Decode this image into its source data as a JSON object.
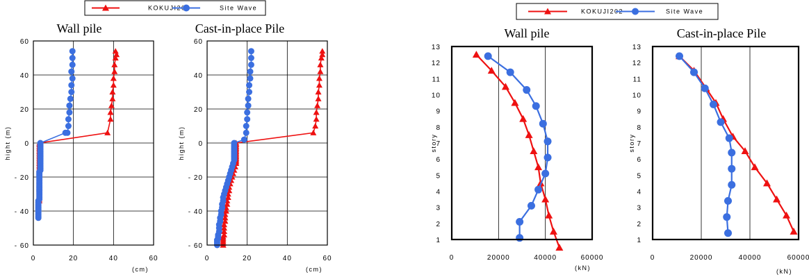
{
  "colors": {
    "red": "#ee1111",
    "blue": "#3b6fe0"
  },
  "legends": [
    {
      "items": [
        {
          "label": "KOKUJI202",
          "color": "#ee1111",
          "marker": "triangle"
        },
        {
          "label": "Site Wave",
          "color": "#3b6fe0",
          "marker": "circle"
        }
      ]
    },
    {
      "items": [
        {
          "label": "KOKUJI202",
          "color": "#ee1111",
          "marker": "triangle"
        },
        {
          "label": "Site Wave",
          "color": "#3b6fe0",
          "marker": "circle"
        }
      ]
    }
  ],
  "chart_data": [
    {
      "type": "line",
      "title": "Wall pile",
      "ylabel": "hight (m)",
      "xunit": "(cm)",
      "xlim": [
        0,
        60
      ],
      "ylim": [
        -60,
        60
      ],
      "xticks": [
        0,
        20,
        40,
        60
      ],
      "yticks": [
        60,
        40,
        20,
        0,
        -20,
        -40,
        -60
      ],
      "grid": true,
      "series": [
        {
          "name": "KOKUJI202",
          "color": "#ee1111",
          "marker": "triangle",
          "x": [
            41,
            41.5,
            41,
            40.5,
            40.5,
            40,
            40,
            39.5,
            39.5,
            39,
            38.5,
            38.5,
            37,
            3,
            3,
            3,
            3,
            3,
            3,
            3,
            3,
            3,
            3,
            3,
            3,
            3,
            3,
            3,
            3,
            3,
            3,
            3,
            3,
            3,
            3,
            3,
            3,
            3,
            3,
            3,
            3,
            3,
            3,
            3,
            3,
            3,
            3,
            3
          ],
          "y": [
            54,
            52,
            50,
            46,
            42,
            38,
            34,
            30,
            26,
            22,
            18,
            14,
            6,
            0,
            -1,
            -2,
            -3,
            -4,
            -5,
            -6,
            -7,
            -8,
            -9,
            -10,
            -11,
            -12,
            -13,
            -14,
            -15,
            -16,
            -17,
            -18,
            -19,
            -20,
            -21,
            -22,
            -23,
            -24,
            -25,
            -26,
            -27,
            -28,
            -29,
            -30,
            -31,
            -32,
            -33,
            -34
          ]
        },
        {
          "name": "Site Wave",
          "color": "#3b6fe0",
          "marker": "circle",
          "x": [
            19.5,
            19.5,
            19.5,
            19,
            19.5,
            19,
            19,
            18.5,
            18,
            18,
            17.5,
            17.5,
            17,
            16,
            3.5,
            3.5,
            3.5,
            3.5,
            3.5,
            3.5,
            3.5,
            3.5,
            3.5,
            3.5,
            3.5,
            3.5,
            3.5,
            3.5,
            3.5,
            3.5,
            3.5,
            3,
            3,
            3,
            3,
            3,
            3,
            3,
            3,
            3,
            3,
            3,
            3,
            3,
            3,
            3,
            3,
            3,
            2.5,
            2.5,
            2.5,
            2.5,
            2.5,
            2.5,
            2.5,
            2.5,
            2.5,
            2.5,
            2.5
          ],
          "y": [
            54,
            50,
            46,
            42,
            38,
            34,
            30,
            26,
            22,
            18,
            14,
            10,
            6,
            6,
            0,
            -1,
            -2,
            -3,
            -4,
            -5,
            -6,
            -7,
            -8,
            -9,
            -10,
            -11,
            -12,
            -13,
            -14,
            -15,
            -16,
            -17,
            -18,
            -19,
            -20,
            -21,
            -22,
            -23,
            -24,
            -25,
            -26,
            -27,
            -28,
            -29,
            -30,
            -31,
            -32,
            -33,
            -34,
            -35,
            -36,
            -37,
            -38,
            -39,
            -40,
            -41,
            -42,
            -43,
            -44
          ]
        }
      ]
    },
    {
      "type": "line",
      "title": "Cast-in-place Pile",
      "ylabel": "hight (m)",
      "xunit": "(cm)",
      "xlim": [
        0,
        60
      ],
      "ylim": [
        -60,
        60
      ],
      "xticks": [
        0,
        20,
        40,
        60
      ],
      "yticks": [
        60,
        40,
        20,
        0,
        -20,
        -40,
        -60
      ],
      "grid": true,
      "series": [
        {
          "name": "KOKUJI202",
          "color": "#ee1111",
          "marker": "triangle",
          "x": [
            57.5,
            57.5,
            57,
            56.5,
            56.5,
            56,
            56,
            55.5,
            55.5,
            55,
            54.5,
            54.5,
            54,
            53,
            14.5,
            14.5,
            14.5,
            14.5,
            14.5,
            14.5,
            14.5,
            14.5,
            14.5,
            14.5,
            14.5,
            14.5,
            14.5,
            14,
            13.5,
            13,
            12.5,
            12,
            11.5,
            11,
            11,
            10.5,
            10.5,
            10,
            10,
            9.5,
            9.5,
            9,
            9,
            9,
            8.5,
            8.5,
            8.5,
            8.5,
            8,
            8,
            8,
            8,
            8,
            8,
            8
          ],
          "y": [
            54,
            52,
            50,
            46,
            42,
            38,
            34,
            30,
            26,
            22,
            18,
            14,
            10,
            6,
            0,
            -1,
            -2,
            -3,
            -4,
            -5,
            -6,
            -7,
            -8,
            -9,
            -10,
            -11,
            -12,
            -14,
            -16,
            -18,
            -20,
            -22,
            -24,
            -26,
            -28,
            -30,
            -32,
            -34,
            -36,
            -38,
            -40,
            -42,
            -44,
            -46,
            -48,
            -50,
            -52,
            -54,
            -55,
            -56,
            -57,
            -58,
            -59,
            -60,
            -60
          ]
        },
        {
          "name": "Site Wave",
          "color": "#3b6fe0",
          "marker": "circle",
          "x": [
            22,
            22,
            22,
            21.5,
            21.5,
            21,
            21,
            20.5,
            20.5,
            20,
            20,
            19.5,
            19.5,
            18.5,
            13.5,
            13.5,
            13.5,
            13.5,
            13.5,
            13.5,
            13.5,
            13.5,
            13.5,
            13.5,
            13.5,
            13,
            12.5,
            12,
            11.5,
            11,
            10.5,
            10,
            9.5,
            9,
            8.5,
            8,
            8,
            7.5,
            7.5,
            7,
            7,
            6.5,
            6.5,
            6,
            6,
            6,
            5.5,
            5.5,
            5.5,
            5,
            5,
            5,
            5
          ],
          "y": [
            54,
            50,
            46,
            42,
            38,
            34,
            30,
            26,
            22,
            18,
            14,
            10,
            6,
            2,
            0,
            -1,
            -2,
            -3,
            -4,
            -5,
            -6,
            -7,
            -8,
            -9,
            -10,
            -12,
            -14,
            -16,
            -18,
            -20,
            -22,
            -24,
            -26,
            -28,
            -30,
            -32,
            -34,
            -36,
            -38,
            -40,
            -42,
            -44,
            -46,
            -48,
            -50,
            -52,
            -54,
            -55,
            -56,
            -57,
            -58,
            -59,
            -60
          ]
        }
      ]
    },
    {
      "type": "line",
      "title": "Wall    pile",
      "ylabel": "story",
      "xunit": "(kN)",
      "xlim": [
        0,
        60000
      ],
      "ylim": [
        1,
        13
      ],
      "xticks": [
        0,
        20000,
        40000,
        60000
      ],
      "yticks": [
        13,
        12,
        11,
        10,
        9,
        8,
        7,
        6,
        5,
        4,
        3,
        2,
        1
      ],
      "grid": true,
      "series": [
        {
          "name": "KOKUJI202",
          "color": "#ee1111",
          "marker": "triangle",
          "x": [
            10500,
            17000,
            23000,
            27000,
            30500,
            33000,
            35000,
            37000,
            38000,
            40000,
            41500,
            43500,
            46000
          ],
          "y": [
            12.5,
            11.5,
            10.5,
            9.5,
            8.5,
            7.5,
            6.5,
            5.5,
            4.5,
            3.5,
            2.5,
            1.5,
            0.5
          ]
        },
        {
          "name": "Site Wave",
          "color": "#3b6fe0",
          "marker": "circle",
          "x": [
            15500,
            25000,
            32000,
            36000,
            39000,
            41000,
            41000,
            40000,
            37000,
            34000,
            29000,
            29000
          ],
          "y": [
            12.4,
            11.4,
            10.3,
            9.3,
            8.2,
            7.1,
            6.1,
            5.1,
            4.1,
            3.1,
            2.1,
            1.1
          ]
        }
      ]
    },
    {
      "type": "line",
      "title": "Cast-in-place Pile",
      "ylabel": "story",
      "xunit": "(kN)",
      "xlim": [
        0,
        60000
      ],
      "ylim": [
        1,
        13
      ],
      "xticks": [
        0,
        20000,
        40000,
        60000
      ],
      "yticks": [
        13,
        12,
        11,
        10,
        9,
        8,
        7,
        6,
        5,
        4,
        3,
        2,
        1
      ],
      "grid": true,
      "series": [
        {
          "name": "KOKUJI202",
          "color": "#ee1111",
          "marker": "triangle",
          "x": [
            11000,
            17000,
            22000,
            26000,
            29000,
            33000,
            38000,
            42000,
            47000,
            51000,
            55000,
            58000
          ],
          "y": [
            12.4,
            11.5,
            10.4,
            9.5,
            8.5,
            7.4,
            6.5,
            5.5,
            4.5,
            3.5,
            2.5,
            1.5
          ]
        },
        {
          "name": "Site Wave",
          "color": "#3b6fe0",
          "marker": "circle",
          "x": [
            11000,
            17000,
            21500,
            25000,
            28000,
            31500,
            32500,
            32500,
            32500,
            31000,
            30500,
            31000
          ],
          "y": [
            12.4,
            11.4,
            10.4,
            9.4,
            8.3,
            7.3,
            6.4,
            5.4,
            4.4,
            3.4,
            2.4,
            1.4
          ]
        }
      ]
    }
  ]
}
